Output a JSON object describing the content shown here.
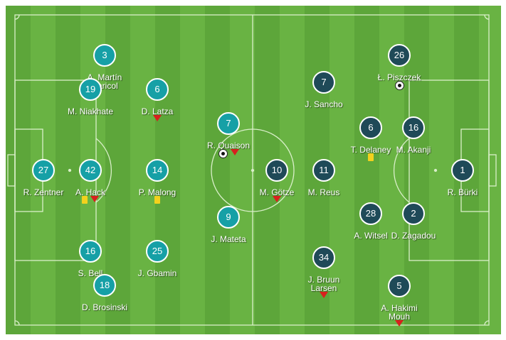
{
  "colors": {
    "home": "#16a0a6",
    "away": "#1f4a58",
    "pitch_dark": "#5da63a",
    "pitch_light": "#69b343",
    "sub_off": "#d8201e",
    "yellow_card": "#f3d11d"
  },
  "players": [
    {
      "team": "home",
      "number": "3",
      "name": [
        "A. Martín",
        "Caricol"
      ],
      "events": []
    },
    {
      "team": "home",
      "number": "19",
      "name": [
        "M. Niakhate"
      ],
      "events": []
    },
    {
      "team": "home",
      "number": "6",
      "name": [
        "D. Latza"
      ],
      "events": [
        "sub-off"
      ]
    },
    {
      "team": "home",
      "number": "7",
      "name": [
        "R. Quaison"
      ],
      "events": [
        "goal",
        "sub-off"
      ]
    },
    {
      "team": "home",
      "number": "27",
      "name": [
        "R. Zentner"
      ],
      "events": []
    },
    {
      "team": "home",
      "number": "42",
      "name": [
        "A. Hack"
      ],
      "events": [
        "yellow-card",
        "sub-off"
      ]
    },
    {
      "team": "home",
      "number": "14",
      "name": [
        "P. Malong"
      ],
      "events": [
        "yellow-card"
      ]
    },
    {
      "team": "home",
      "number": "9",
      "name": [
        "J. Mateta"
      ],
      "events": []
    },
    {
      "team": "home",
      "number": "16",
      "name": [
        "S. Bell"
      ],
      "events": []
    },
    {
      "team": "home",
      "number": "25",
      "name": [
        "J. Gbamin"
      ],
      "events": []
    },
    {
      "team": "home",
      "number": "18",
      "name": [
        "D. Brosinski"
      ],
      "events": []
    },
    {
      "team": "away",
      "number": "26",
      "name": [
        "Ł. Piszczek"
      ],
      "events": [
        "goal"
      ]
    },
    {
      "team": "away",
      "number": "7",
      "name": [
        "J. Sancho"
      ],
      "events": []
    },
    {
      "team": "away",
      "number": "6",
      "name": [
        "T. Delaney"
      ],
      "events": [
        "yellow-card"
      ]
    },
    {
      "team": "away",
      "number": "16",
      "name": [
        "M. Akanji"
      ],
      "events": []
    },
    {
      "team": "away",
      "number": "10",
      "name": [
        "M. Götze"
      ],
      "events": [
        "sub-off"
      ]
    },
    {
      "team": "away",
      "number": "11",
      "name": [
        "M. Reus"
      ],
      "events": []
    },
    {
      "team": "away",
      "number": "1",
      "name": [
        "R. Bürki"
      ],
      "events": []
    },
    {
      "team": "away",
      "number": "28",
      "name": [
        "A. Witsel"
      ],
      "events": []
    },
    {
      "team": "away",
      "number": "2",
      "name": [
        "D. Zagadou"
      ],
      "events": []
    },
    {
      "team": "away",
      "number": "34",
      "name": [
        "J. Bruun",
        "Larsen"
      ],
      "events": [
        "sub-off"
      ]
    },
    {
      "team": "away",
      "number": "5",
      "name": [
        "A. Hakimi",
        "Mouh"
      ],
      "events": [
        "sub-off"
      ]
    }
  ]
}
